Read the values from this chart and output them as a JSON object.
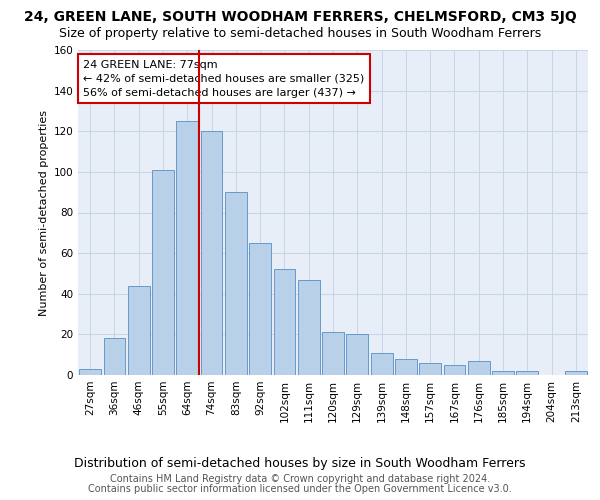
{
  "title": "24, GREEN LANE, SOUTH WOODHAM FERRERS, CHELMSFORD, CM3 5JQ",
  "subtitle": "Size of property relative to semi-detached houses in South Woodham Ferrers",
  "xlabel": "Distribution of semi-detached houses by size in South Woodham Ferrers",
  "ylabel": "Number of semi-detached properties",
  "footer1": "Contains HM Land Registry data © Crown copyright and database right 2024.",
  "footer2": "Contains public sector information licensed under the Open Government Licence v3.0.",
  "annotation_title": "24 GREEN LANE: 77sqm",
  "annotation_line1": "← 42% of semi-detached houses are smaller (325)",
  "annotation_line2": "56% of semi-detached houses are larger (437) →",
  "bar_labels": [
    "27sqm",
    "36sqm",
    "46sqm",
    "55sqm",
    "64sqm",
    "74sqm",
    "83sqm",
    "92sqm",
    "102sqm",
    "111sqm",
    "120sqm",
    "129sqm",
    "139sqm",
    "148sqm",
    "157sqm",
    "167sqm",
    "176sqm",
    "185sqm",
    "194sqm",
    "204sqm",
    "213sqm"
  ],
  "bar_values": [
    3,
    18,
    44,
    101,
    125,
    120,
    90,
    65,
    52,
    47,
    21,
    20,
    11,
    8,
    6,
    5,
    7,
    2,
    2,
    0,
    2
  ],
  "bar_color": "#b8d0e8",
  "bar_edge_color": "#6699cc",
  "vline_color": "#cc0000",
  "vline_position": 4.5,
  "ylim": [
    0,
    160
  ],
  "yticks": [
    0,
    20,
    40,
    60,
    80,
    100,
    120,
    140,
    160
  ],
  "grid_color": "#c8d4e8",
  "bg_color": "#e8eef8",
  "annotation_box_color": "#ffffff",
  "annotation_box_edge": "#cc0000",
  "title_fontsize": 10,
  "subtitle_fontsize": 9,
  "ylabel_fontsize": 8,
  "xlabel_fontsize": 9,
  "tick_fontsize": 7.5,
  "annotation_fontsize": 8,
  "footer_fontsize": 7
}
